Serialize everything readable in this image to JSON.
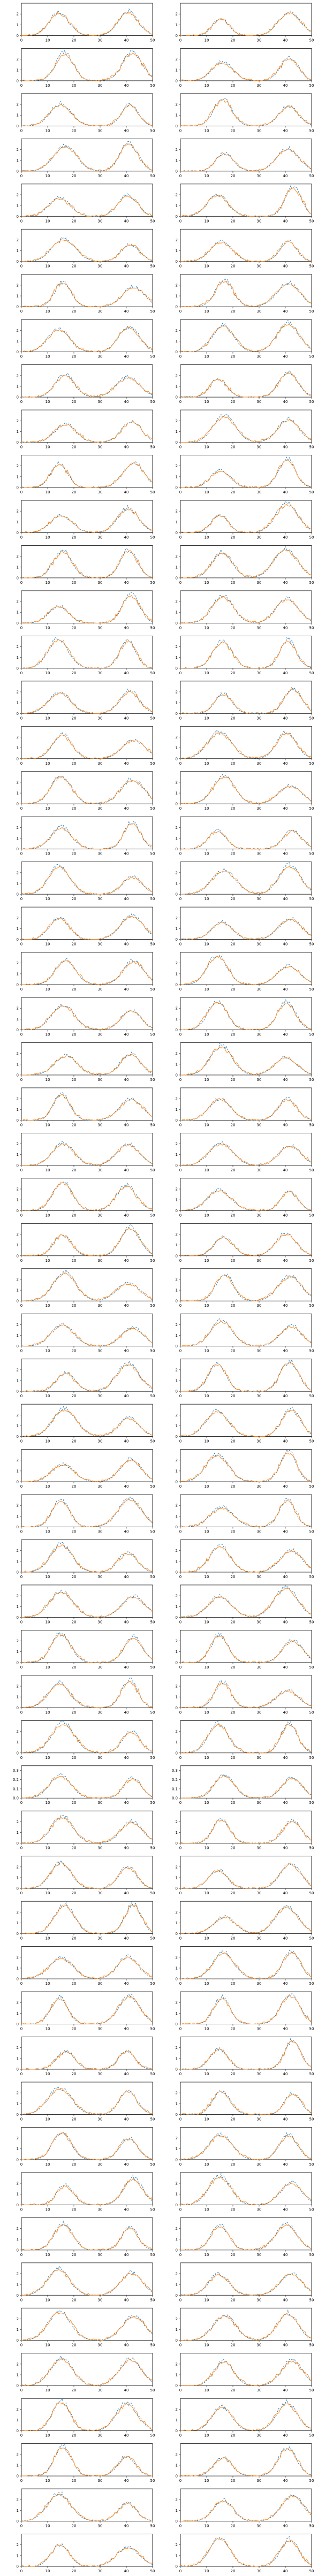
{
  "figure": {
    "rows": 57,
    "cols": 2,
    "colors": {
      "observed": "#1f77b4",
      "predicted": "#ff7f0e",
      "axes": "#000000",
      "background": "#ffffff"
    }
  },
  "chart_data": [
    {
      "type": "line",
      "panel_grid": "57 rows x 2 columns of small line plots",
      "xlim": [
        0,
        50
      ],
      "xticks": [
        "0",
        "10",
        "20",
        "30",
        "40",
        "50"
      ],
      "yticks_typical": [
        "0",
        "1",
        "2"
      ],
      "yticks_small_amplitude_rows": [
        "0.0",
        "0.1",
        "0.2",
        "0.3"
      ],
      "series": [
        {
          "style": "dashed",
          "color": "#1f77b4"
        },
        {
          "style": "solid",
          "color": "#ff7f0e"
        }
      ],
      "shape": "two bell-shaped peaks centered near x=15 and x=41, baseline near 0 between and around them",
      "peak_amplitude_range": [
        1.5,
        3.0
      ],
      "notes": "Each row shows a pair of similar twin-peak curves; row 39 uses a smaller y scale with ticks 0.0-0.3"
    }
  ]
}
